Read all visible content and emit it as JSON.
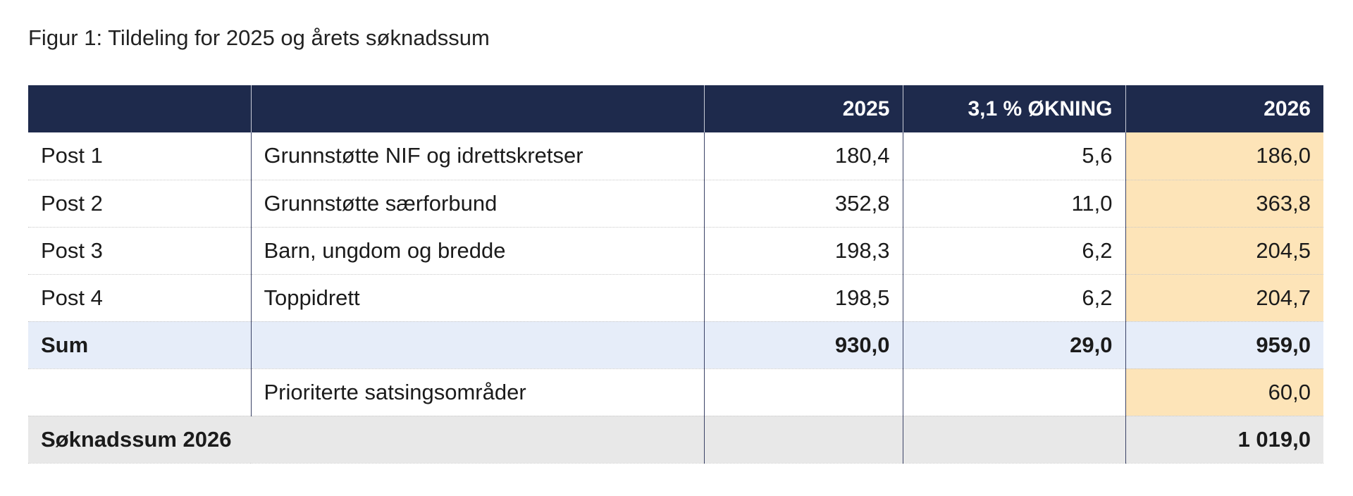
{
  "caption": "Figur 1: Tildeling for 2025 og årets søknadssum",
  "table": {
    "headers": [
      "",
      "",
      "2025",
      "3,1 % ØKNING",
      "2026"
    ],
    "rows": [
      {
        "post": "Post 1",
        "description": "Grunnstøtte NIF og idrettskretser",
        "y2025": "180,4",
        "increase": "5,6",
        "y2026": "186,0"
      },
      {
        "post": "Post 2",
        "description": "Grunnstøtte særforbund",
        "y2025": "352,8",
        "increase": "11,0",
        "y2026": "363,8"
      },
      {
        "post": "Post 3",
        "description": "Barn, ungdom og bredde",
        "y2025": "198,3",
        "increase": "6,2",
        "y2026": "204,5"
      },
      {
        "post": "Post 4",
        "description": "Toppidrett",
        "y2025": "198,5",
        "increase": "6,2",
        "y2026": "204,7"
      }
    ],
    "sum": {
      "label": "Sum",
      "y2025": "930,0",
      "increase": "29,0",
      "y2026": "959,0"
    },
    "priority": {
      "description": "Prioriterte satsingsområder",
      "y2026": "60,0"
    },
    "total": {
      "label": "Søknadssum 2026",
      "y2026": "1 019,0"
    }
  },
  "colors": {
    "header_bg": "#1e2a4c",
    "highlight_2026": "#fde4b8",
    "sum_row_bg": "#e6edf9",
    "total_row_bg": "#e8e8e8"
  }
}
